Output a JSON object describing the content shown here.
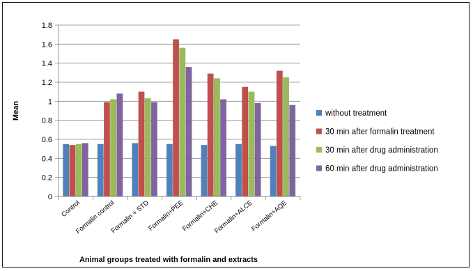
{
  "chart_data": {
    "type": "bar",
    "title": "",
    "xlabel": "Animal groups treated with formalin and extracts",
    "ylabel": "Mean",
    "ylim": [
      0,
      1.8
    ],
    "yticks": [
      "0",
      "0.2",
      "0.4",
      "0.6",
      "0.8",
      "1",
      "1.2",
      "1.4",
      "1.6",
      "1.8"
    ],
    "grid": true,
    "legend_position": "right",
    "categories": [
      "Control",
      "Formalin control",
      "Formalin + STD",
      "Formalin+PEE",
      "Formalin+CHE",
      "Formalin+ALCE",
      "Formalin+AQE"
    ],
    "series": [
      {
        "name": "without treatment",
        "color": "#4F81BD",
        "values": [
          0.55,
          0.55,
          0.56,
          0.55,
          0.54,
          0.55,
          0.53
        ]
      },
      {
        "name": "30 min after formalin treatment",
        "color": "#C0504D",
        "values": [
          0.54,
          0.99,
          1.1,
          1.65,
          1.29,
          1.15,
          1.32
        ]
      },
      {
        "name": "30 min after drug administration",
        "color": "#9BBB59",
        "values": [
          0.55,
          1.02,
          1.03,
          1.56,
          1.24,
          1.1,
          1.25
        ]
      },
      {
        "name": "60 min after drug administration",
        "color": "#8064A2",
        "values": [
          0.56,
          1.08,
          0.99,
          1.36,
          1.02,
          0.98,
          0.96
        ]
      }
    ]
  }
}
